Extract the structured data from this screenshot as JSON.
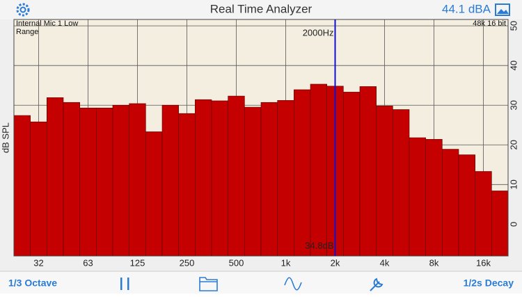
{
  "header": {
    "title": "Real Time Analyzer",
    "level": "44.1 dBA"
  },
  "chart_data": {
    "type": "bar",
    "y_label": "dB SPL",
    "source_label": "Internal Mic 1 Low",
    "range_label": "Range",
    "format_label": "48k 16 bit",
    "marker": {
      "category": "2k",
      "frequency_label": "2000Hz",
      "level_label": "34.8dB"
    },
    "categories": [
      null,
      "32",
      null,
      null,
      "63",
      null,
      null,
      "125",
      null,
      null,
      "250",
      null,
      null,
      "500",
      null,
      null,
      "1k",
      null,
      null,
      "2k",
      null,
      null,
      "4k",
      null,
      null,
      "8k",
      null,
      null,
      "16k",
      null
    ],
    "values": [
      27.4,
      25.8,
      31.9,
      30.7,
      29.3,
      29.3,
      30.0,
      30.4,
      23.3,
      30.0,
      27.9,
      31.4,
      31.1,
      32.3,
      29.5,
      30.7,
      31.2,
      33.9,
      35.3,
      34.8,
      33.3,
      34.7,
      29.8,
      28.9,
      21.8,
      21.4,
      18.9,
      17.5,
      13.3,
      8.4
    ],
    "color": "#c40000",
    "ylim": [
      -8,
      51.6
    ],
    "yticks": [
      0,
      10,
      20,
      30,
      40,
      50
    ],
    "grid": true
  },
  "toolbar": {
    "left": "1/3 Octave",
    "right": "1/2s Decay"
  }
}
